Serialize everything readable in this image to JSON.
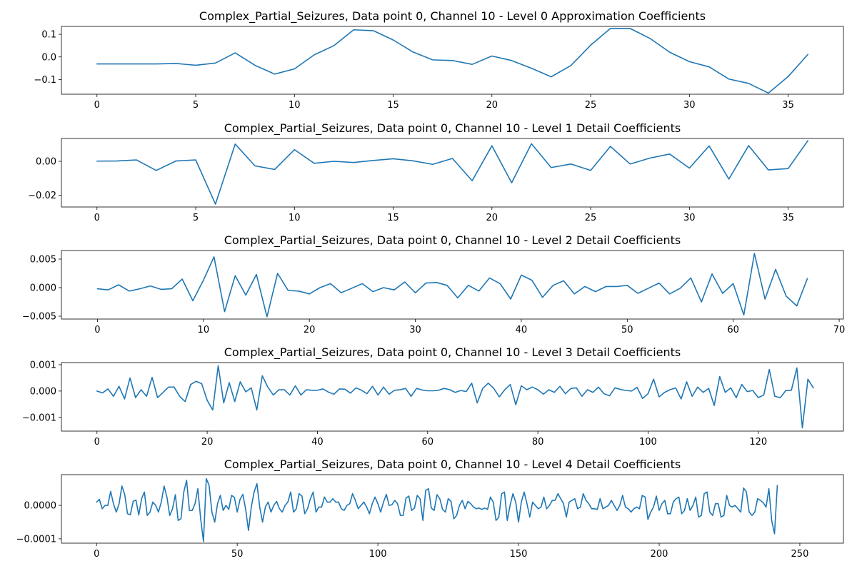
{
  "chart_data": [
    {
      "type": "line",
      "title": "Complex_Partial_Seizures, Data point 0, Channel 10 - Level 0 Approximation Coefficients",
      "xlabel": "",
      "ylabel": "",
      "xlim": [
        -1.8,
        37.8
      ],
      "ylim": [
        -0.165,
        0.135
      ],
      "xticks": [
        0,
        5,
        10,
        15,
        20,
        25,
        30,
        35
      ],
      "xtick_labels": [
        "0",
        "5",
        "10",
        "15",
        "20",
        "25",
        "30",
        "35"
      ],
      "yticks": [
        -0.1,
        0.0,
        0.1
      ],
      "ytick_labels": [
        "−0.1",
        "0.0",
        "0.1"
      ],
      "grid": false,
      "color": "#1f77b4",
      "series": [
        {
          "values": [
            -0.031,
            -0.031,
            -0.031,
            -0.031,
            -0.029,
            -0.037,
            -0.027,
            0.018,
            -0.037,
            -0.076,
            -0.053,
            0.009,
            0.05,
            0.12,
            0.116,
            0.075,
            0.022,
            -0.013,
            -0.016,
            -0.033,
            0.004,
            -0.016,
            -0.05,
            -0.088,
            -0.038,
            0.052,
            0.126,
            0.126,
            0.082,
            0.021,
            -0.021,
            -0.044,
            -0.098,
            -0.117,
            -0.16,
            -0.087,
            0.011
          ]
        }
      ]
    },
    {
      "type": "line",
      "title": "Complex_Partial_Seizures, Data point 0, Channel 10 - Level 1 Detail Coefficients",
      "xlabel": "",
      "ylabel": "",
      "xlim": [
        -1.8,
        37.8
      ],
      "ylim": [
        -0.027,
        0.0135
      ],
      "xticks": [
        0,
        5,
        10,
        15,
        20,
        25,
        30,
        35
      ],
      "xtick_labels": [
        "0",
        "5",
        "10",
        "15",
        "20",
        "25",
        "30",
        "35"
      ],
      "yticks": [
        -0.02,
        0.0
      ],
      "ytick_labels": [
        "−0.02",
        "0.00"
      ],
      "grid": false,
      "color": "#1f77b4",
      "series": [
        {
          "values": [
            0.0001,
            0.0002,
            0.0008,
            -0.0054,
            0.0002,
            0.0008,
            -0.0253,
            0.0102,
            -0.0027,
            -0.0048,
            0.0069,
            -0.0012,
            0.0,
            -0.0007,
            0.0005,
            0.0015,
            0.0003,
            -0.0018,
            0.0017,
            -0.0115,
            0.0092,
            -0.0127,
            0.0104,
            -0.0037,
            -0.0016,
            -0.0054,
            0.0088,
            -0.0016,
            0.0019,
            0.0043,
            -0.004,
            0.0091,
            -0.0105,
            0.0093,
            -0.0051,
            -0.0043,
            0.0122
          ]
        }
      ]
    },
    {
      "type": "line",
      "title": "Complex_Partial_Seizures, Data point 0, Channel 10 - Level 2 Detail Coefficients",
      "xlabel": "",
      "ylabel": "",
      "xlim": [
        -3.4,
        70.4
      ],
      "ylim": [
        -0.0055,
        0.0065
      ],
      "xticks": [
        0,
        10,
        20,
        30,
        40,
        50,
        60,
        70
      ],
      "xtick_labels": [
        "0",
        "10",
        "20",
        "30",
        "40",
        "50",
        "60",
        "70"
      ],
      "yticks": [
        -0.005,
        0.0,
        0.005
      ],
      "ytick_labels": [
        "−0.005",
        "0.000",
        "0.005"
      ],
      "grid": false,
      "color": "#1f77b4",
      "series": [
        {
          "values": [
            -0.0002,
            -0.0004,
            0.0005,
            -0.0006,
            -0.0002,
            0.0003,
            -0.0003,
            -0.0002,
            0.0015,
            -0.0023,
            0.0013,
            0.0054,
            -0.0042,
            0.0021,
            -0.0013,
            0.0023,
            -0.0051,
            0.0025,
            -0.0005,
            -0.0006,
            -0.0011,
            0.0,
            0.0007,
            -0.0009,
            -0.0001,
            0.0007,
            -0.0007,
            0.0,
            -0.0004,
            0.001,
            -0.0009,
            0.0008,
            0.0009,
            0.0004,
            -0.0018,
            0.0004,
            -0.0006,
            0.0017,
            0.0007,
            -0.002,
            0.0022,
            0.0013,
            -0.0017,
            0.0004,
            0.0012,
            -0.0011,
            0.0002,
            -0.0007,
            0.0002,
            0.0002,
            0.0004,
            -0.001,
            -0.0001,
            0.0008,
            -0.0011,
            -0.0001,
            0.0017,
            -0.0025,
            0.0024,
            -0.001,
            0.0007,
            -0.0048,
            0.006,
            -0.002,
            0.0032,
            -0.0015,
            -0.0032,
            0.0016
          ]
        }
      ]
    },
    {
      "type": "line",
      "title": "Complex_Partial_Seizures, Data point 0, Channel 10 - Level 3 Detail Coefficients",
      "xlabel": "",
      "ylabel": "",
      "xlim": [
        -6.45,
        135.45
      ],
      "ylim": [
        -0.00152,
        0.00108
      ],
      "xticks": [
        0,
        20,
        40,
        60,
        80,
        100,
        120
      ],
      "xtick_labels": [
        "0",
        "20",
        "40",
        "60",
        "80",
        "100",
        "120"
      ],
      "yticks": [
        -0.001,
        0.0,
        0.001
      ],
      "ytick_labels": [
        "−0.001",
        "0.000",
        "0.001"
      ],
      "grid": false,
      "color": "#1f77b4",
      "series": [
        {
          "values": [
            0.0,
            -7e-05,
            8e-05,
            -0.0002,
            0.00018,
            -0.0003,
            0.0005,
            -0.00025,
            5e-05,
            -0.0002,
            0.00052,
            -0.00025,
            -5e-05,
            0.00015,
            0.00015,
            -0.0002,
            -0.0004,
            0.00025,
            0.00037,
            0.00028,
            -0.00035,
            -0.00072,
            0.00096,
            -0.00045,
            0.00032,
            -0.0004,
            0.00035,
            -3e-05,
            0.00012,
            -0.00072,
            0.00058,
            0.00015,
            -0.00015,
            5e-05,
            5e-05,
            -0.00015,
            0.0002,
            -0.00015,
            5e-05,
            3e-05,
            3e-05,
            8e-05,
            -4e-05,
            -0.00012,
            8e-05,
            7e-05,
            -8e-05,
            0.00012,
            3e-05,
            -0.0001,
            0.00018,
            -0.00015,
            0.00015,
            -0.00012,
            3e-05,
            5e-05,
            0.0001,
            -0.0002,
            0.0001,
            4e-05,
            1e-05,
            1e-05,
            3e-05,
            0.0001,
            5e-05,
            -5e-05,
            2e-05,
            -2e-05,
            0.0003,
            -0.00045,
            0.0001,
            0.0003,
            0.0001,
            -0.00022,
            5e-05,
            0.00025,
            -0.00052,
            0.0002,
            5e-05,
            0.00015,
            5e-05,
            -0.00012,
            5e-05,
            -5e-05,
            0.00018,
            -0.0001,
            0.0001,
            0.00012,
            -0.0002,
            5e-05,
            -5e-05,
            0.00015,
            -0.0001,
            -0.00018,
            0.00012,
            6e-05,
            2e-05,
            0.0,
            0.00014,
            -0.00028,
            -0.0001,
            0.00045,
            -0.00022,
            -5e-05,
            5e-05,
            0.00012,
            -0.0003,
            0.00035,
            -0.0002,
            0.00015,
            -5e-05,
            0.0001,
            -0.00055,
            0.00055,
            -5e-05,
            0.00012,
            -0.00025,
            0.00025,
            -2e-05,
            2e-05,
            -0.00025,
            -0.00015,
            0.00082,
            -0.0002,
            -0.00025,
            2e-05,
            3e-05,
            0.00088,
            -0.0014,
            0.00045,
            0.00012
          ]
        }
      ]
    },
    {
      "type": "line",
      "title": "Complex_Partial_Seizures, Data point 0, Channel 10 - Level 4 Detail Coefficients",
      "xlabel": "",
      "ylabel": "",
      "xlim": [
        -12.5,
        265.5
      ],
      "ylim": [
        -0.000113,
        9.2e-05
      ],
      "xticks": [
        0,
        50,
        100,
        150,
        200,
        250
      ],
      "xtick_labels": [
        "0",
        "50",
        "100",
        "150",
        "200",
        "250"
      ],
      "yticks": [
        -0.0001,
        0.0
      ],
      "ytick_labels": [
        "−0.0001",
        "0.0000"
      ],
      "grid": false,
      "color": "#1f77b4",
      "series": [
        {
          "values": [
            1e-05,
            1.8e-05,
            -1e-05,
            0.0,
            0.0,
            4.2e-05,
            5e-06,
            -2e-05,
            5e-06,
            5.8e-05,
            3.3e-05,
            -2.5e-05,
            -2.8e-05,
            1.2e-05,
            1.6e-05,
            -2.9e-05,
            2e-05,
            4e-05,
            -3e-05,
            -2e-05,
            1e-05,
            0.0,
            -2e-05,
            1e-05,
            5.8e-05,
            2.5e-05,
            -3e-05,
            -1e-05,
            3.2e-05,
            -4.5e-05,
            -4e-05,
            4e-05,
            7.5e-05,
            -1.5e-05,
            -1.5e-05,
            5e-06,
            5e-05,
            -4e-05,
            -0.000108,
            8e-05,
            6e-05,
            -2e-05,
            -5e-05,
            5e-06,
            3e-05,
            -1.5e-05,
            0.0,
            -1.2e-05,
            3e-05,
            2.4e-05,
            -2e-05,
            1.8e-05,
            3.3e-05,
            -1.2e-05,
            -7.5e-05,
            -5e-06,
            4e-05,
            6.5e-05,
            -5e-06,
            -5e-05,
            -5e-06,
            1e-05,
            -2e-05,
            0.0,
            1.2e-05,
            -1e-05,
            -2e-05,
            0.0,
            1e-05,
            4e-05,
            -2e-05,
            -1e-05,
            3.5e-05,
            2.8e-05,
            -2.5e-05,
            -1e-05,
            2e-05,
            4e-05,
            -2e-05,
            -5e-06,
            -5e-06,
            2.5e-05,
            1e-05,
            1e-05,
            2e-05,
            1e-05,
            1e-05,
            -1e-05,
            -1.5e-05,
            0.0,
            5e-06,
            3.5e-05,
            1.5e-05,
            -1e-05,
            0.0,
            1e-05,
            -5e-06,
            -2.5e-05,
            5e-06,
            2.5e-05,
            5e-06,
            -2e-05,
            1e-05,
            3.3e-05,
            0.0,
            2e-06,
            1.5e-05,
            5e-06,
            -3e-05,
            -3e-05,
            2.2e-05,
            2.8e-05,
            -1.5e-05,
            -8e-06,
            3e-05,
            2e-05,
            -4.5e-05,
            4.5e-05,
            5e-05,
            -8e-06,
            -1.5e-05,
            3.2e-05,
            2e-05,
            -1.2e-05,
            -2e-05,
            2e-05,
            1.2e-05,
            -4e-05,
            -3e-05,
            0.0,
            1.5e-05,
            -1e-05,
            1.2e-05,
            5e-06,
            -5e-06,
            -1e-05,
            -8e-06,
            -1.2e-05,
            -8e-06,
            -1.2e-05,
            2.5e-05,
            1e-05,
            -4.5e-05,
            -3.5e-05,
            3.5e-05,
            4e-05,
            -4.5e-05,
            0.0,
            3.5e-05,
            1e-05,
            -5e-05,
            1e-05,
            4e-05,
            5e-06,
            -3.5e-05,
            1e-05,
            0.0,
            -1e-05,
            -5e-06,
            2.5e-05,
            -1e-05,
            0.0,
            1.5e-05,
            1.5e-05,
            3.5e-05,
            2e-05,
            5e-06,
            -3.5e-05,
            1e-05,
            1.5e-05,
            2e-05,
            -1e-05,
            -5e-06,
            3.5e-05,
            1.5e-05,
            5e-06,
            -1e-05,
            -1e-05,
            -1.2e-05,
            2e-05,
            -1e-05,
            -5e-06,
            0.0,
            1.5e-05,
            0.0,
            -1.5e-05,
            0.0,
            3e-05,
            -5e-06,
            -1e-05,
            -2e-05,
            -1e-05,
            -5e-06,
            -1e-05,
            3e-05,
            2.5e-05,
            -4.2e-05,
            -2e-05,
            -5e-06,
            2.8e-05,
            -1.5e-05,
            5e-06,
            1.5e-05,
            -2.5e-05,
            -2.5e-05,
            1e-05,
            2e-05,
            2.5e-05,
            -2.5e-05,
            -1.5e-05,
            2e-05,
            -1.5e-05,
            0.0,
            2.5e-05,
            -3.5e-05,
            -3e-05,
            3.5e-05,
            4e-05,
            -2e-05,
            -3e-05,
            5e-06,
            5e-06,
            -3.5e-05,
            -3e-05,
            3e-05,
            0.0,
            -5e-06,
            0.0,
            -1e-05,
            -2e-05,
            5.2e-05,
            4e-05,
            -2e-05,
            -3e-05,
            -2e-05,
            2e-05,
            1.5e-05,
            8e-06,
            -5e-06,
            5e-05,
            -4.5e-05,
            -8.5e-05,
            6e-05
          ]
        }
      ]
    }
  ]
}
